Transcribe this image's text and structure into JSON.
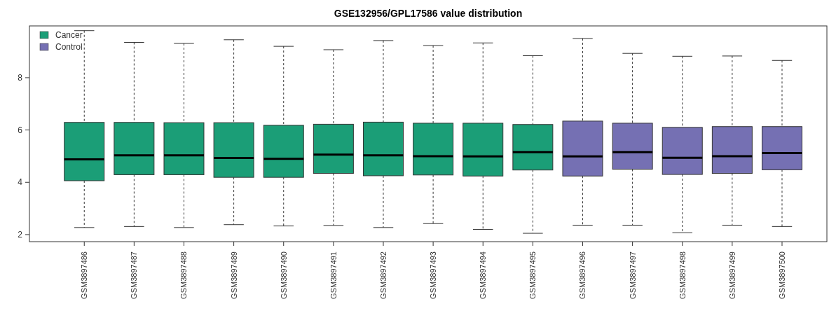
{
  "chart_data": {
    "type": "box",
    "title": "GSE132956/GPL17586 value distribution",
    "categories": [
      "GSM3897486",
      "GSM3897487",
      "GSM3897488",
      "GSM3897489",
      "GSM3897490",
      "GSM3897491",
      "GSM3897492",
      "GSM3897493",
      "GSM3897494",
      "GSM3897495",
      "GSM3897496",
      "GSM3897497",
      "GSM3897498",
      "GSM3897499",
      "GSM3897500"
    ],
    "ylim": [
      1.73,
      9.98
    ],
    "yticks": [
      2,
      4,
      6,
      8
    ],
    "grid": false,
    "legend": "top left",
    "line_style": "dashed",
    "series": [
      {
        "name": "Cancer",
        "color": "#1b9e77",
        "boxes": [
          {
            "low": 2.27,
            "q1": 4.06,
            "median": 4.88,
            "q3": 6.29,
            "high": 9.8
          },
          {
            "low": 2.31,
            "q1": 4.29,
            "median": 5.03,
            "q3": 6.29,
            "high": 9.35
          },
          {
            "low": 2.27,
            "q1": 4.29,
            "median": 5.03,
            "q3": 6.28,
            "high": 9.31
          },
          {
            "low": 2.38,
            "q1": 4.19,
            "median": 4.93,
            "q3": 6.28,
            "high": 9.45
          },
          {
            "low": 2.33,
            "q1": 4.19,
            "median": 4.9,
            "q3": 6.18,
            "high": 9.2
          },
          {
            "low": 2.35,
            "q1": 4.34,
            "median": 5.06,
            "q3": 6.22,
            "high": 9.07
          },
          {
            "low": 2.27,
            "q1": 4.25,
            "median": 5.03,
            "q3": 6.3,
            "high": 9.42
          },
          {
            "low": 2.42,
            "q1": 4.28,
            "median": 5.0,
            "q3": 6.26,
            "high": 9.23
          },
          {
            "low": 2.2,
            "q1": 4.24,
            "median": 4.99,
            "q3": 6.26,
            "high": 9.33
          },
          {
            "low": 2.05,
            "q1": 4.47,
            "median": 5.15,
            "q3": 6.21,
            "high": 8.84
          },
          null,
          null,
          null,
          null,
          null
        ]
      },
      {
        "name": "Control",
        "color": "#7570b3",
        "boxes": [
          null,
          null,
          null,
          null,
          null,
          null,
          null,
          null,
          null,
          null,
          {
            "low": 2.36,
            "q1": 4.24,
            "median": 4.99,
            "q3": 6.34,
            "high": 9.5
          },
          {
            "low": 2.36,
            "q1": 4.5,
            "median": 5.15,
            "q3": 6.26,
            "high": 8.93
          },
          {
            "low": 2.07,
            "q1": 4.3,
            "median": 4.94,
            "q3": 6.1,
            "high": 8.82
          },
          {
            "low": 2.36,
            "q1": 4.34,
            "median": 5.0,
            "q3": 6.13,
            "high": 8.83
          },
          {
            "low": 2.31,
            "q1": 4.48,
            "median": 5.12,
            "q3": 6.13,
            "high": 8.66
          }
        ]
      }
    ]
  }
}
